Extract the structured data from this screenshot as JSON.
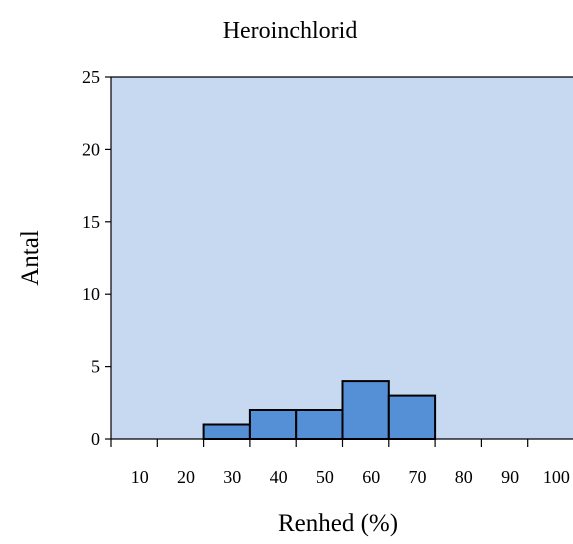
{
  "chart_data": {
    "type": "bar",
    "title": "Heroinchlorid",
    "xlabel": "Renhed (%)",
    "ylabel": "Antal",
    "categories": [
      "10",
      "20",
      "30",
      "40",
      "50",
      "60",
      "70",
      "80",
      "90",
      "100"
    ],
    "values": [
      0,
      0,
      1,
      2,
      2,
      4,
      3,
      0,
      0,
      0
    ],
    "ylim": [
      0,
      25
    ],
    "yticks": [
      0,
      5,
      10,
      15,
      20,
      25
    ],
    "grid": false,
    "legend": "none",
    "colors": {
      "bar_fill": "#5590d6",
      "bar_stroke": "#000000",
      "plot_background": "#c6d9f1"
    }
  }
}
